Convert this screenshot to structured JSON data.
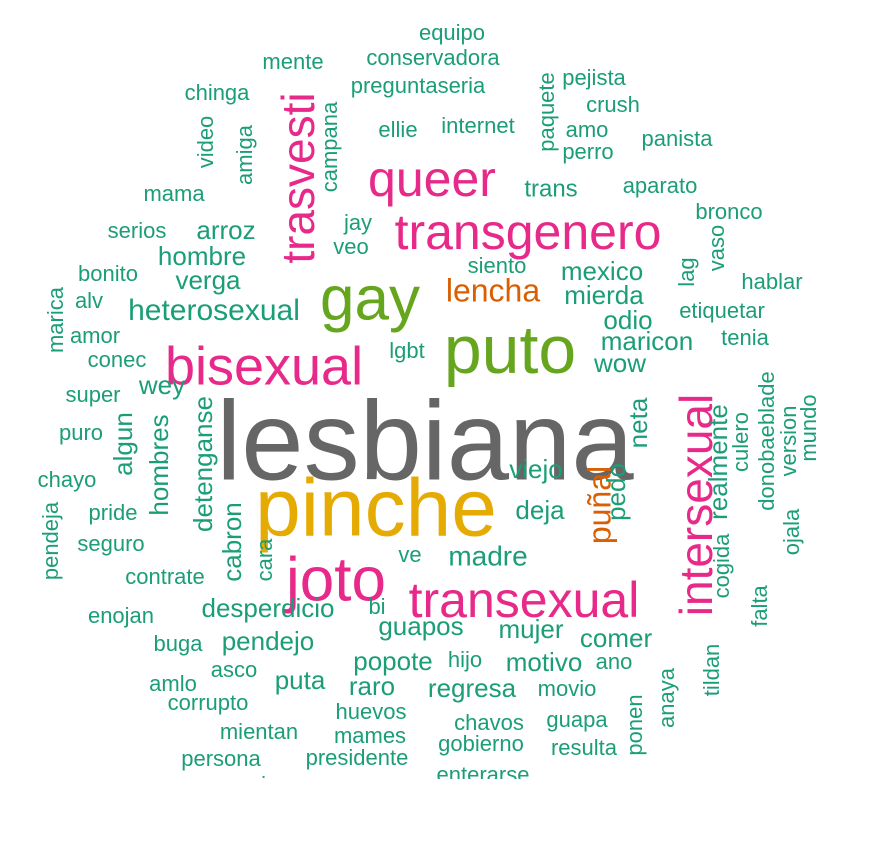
{
  "chart_data": {
    "type": "wordcloud",
    "colors": {
      "large": "#666666",
      "strong": "#e6ab02",
      "accent": "#e7298a",
      "green": "#66a61e",
      "orange": "#d95f02",
      "base": "#1b9e77"
    },
    "words": [
      {
        "text": "lesbiana",
        "color": "large"
      },
      {
        "text": "pinche",
        "color": "strong"
      },
      {
        "text": "puto",
        "color": "green"
      },
      {
        "text": "gay",
        "color": "green"
      },
      {
        "text": "bisexual",
        "color": "accent"
      },
      {
        "text": "transgenero",
        "color": "accent"
      },
      {
        "text": "queer",
        "color": "accent"
      },
      {
        "text": "trasvesti",
        "color": "accent"
      },
      {
        "text": "joto",
        "color": "accent"
      },
      {
        "text": "transexual",
        "color": "accent"
      },
      {
        "text": "intersexual",
        "color": "accent"
      },
      {
        "text": "lencha",
        "color": "orange"
      },
      {
        "text": "puñal",
        "color": "orange"
      },
      {
        "text": "equipo",
        "color": "base"
      },
      {
        "text": "mente",
        "color": "base"
      },
      {
        "text": "conservadora",
        "color": "base"
      },
      {
        "text": "preguntaseria",
        "color": "base"
      },
      {
        "text": "pejista",
        "color": "base"
      },
      {
        "text": "chinga",
        "color": "base"
      },
      {
        "text": "crush",
        "color": "base"
      },
      {
        "text": "paquete",
        "color": "base"
      },
      {
        "text": "campana",
        "color": "base"
      },
      {
        "text": "ellie",
        "color": "base"
      },
      {
        "text": "internet",
        "color": "base"
      },
      {
        "text": "amo",
        "color": "base"
      },
      {
        "text": "perro",
        "color": "base"
      },
      {
        "text": "panista",
        "color": "base"
      },
      {
        "text": "video",
        "color": "base"
      },
      {
        "text": "amiga",
        "color": "base"
      },
      {
        "text": "mama",
        "color": "base"
      },
      {
        "text": "trans",
        "color": "base"
      },
      {
        "text": "aparato",
        "color": "base"
      },
      {
        "text": "serios",
        "color": "base"
      },
      {
        "text": "arroz",
        "color": "base"
      },
      {
        "text": "jay",
        "color": "base"
      },
      {
        "text": "veo",
        "color": "base"
      },
      {
        "text": "bronco",
        "color": "base"
      },
      {
        "text": "vaso",
        "color": "base"
      },
      {
        "text": "hombre",
        "color": "base"
      },
      {
        "text": "siento",
        "color": "base"
      },
      {
        "text": "bonito",
        "color": "base"
      },
      {
        "text": "verga",
        "color": "base"
      },
      {
        "text": "mexico",
        "color": "base"
      },
      {
        "text": "lag",
        "color": "base"
      },
      {
        "text": "hablar",
        "color": "base"
      },
      {
        "text": "alv",
        "color": "base"
      },
      {
        "text": "heterosexual",
        "color": "base"
      },
      {
        "text": "mierda",
        "color": "base"
      },
      {
        "text": "marica",
        "color": "base"
      },
      {
        "text": "etiquetar",
        "color": "base"
      },
      {
        "text": "amor",
        "color": "base"
      },
      {
        "text": "odio",
        "color": "base"
      },
      {
        "text": "tenia",
        "color": "base"
      },
      {
        "text": "maricon",
        "color": "base"
      },
      {
        "text": "conec",
        "color": "base"
      },
      {
        "text": "lgbt",
        "color": "base"
      },
      {
        "text": "wow",
        "color": "base"
      },
      {
        "text": "super",
        "color": "base"
      },
      {
        "text": "wey",
        "color": "base"
      },
      {
        "text": "donobaeblade",
        "color": "base"
      },
      {
        "text": "mundo",
        "color": "base"
      },
      {
        "text": "version",
        "color": "base"
      },
      {
        "text": "culero",
        "color": "base"
      },
      {
        "text": "puro",
        "color": "base"
      },
      {
        "text": "algun",
        "color": "base"
      },
      {
        "text": "hombres",
        "color": "base"
      },
      {
        "text": "detenganse",
        "color": "base"
      },
      {
        "text": "neta",
        "color": "base"
      },
      {
        "text": "realmente",
        "color": "base"
      },
      {
        "text": "chayo",
        "color": "base"
      },
      {
        "text": "viejo",
        "color": "base"
      },
      {
        "text": "pedo",
        "color": "base"
      },
      {
        "text": "pride",
        "color": "base"
      },
      {
        "text": "pendeja",
        "color": "base"
      },
      {
        "text": "cabron",
        "color": "base"
      },
      {
        "text": "deja",
        "color": "base"
      },
      {
        "text": "seguro",
        "color": "base"
      },
      {
        "text": "cara",
        "color": "base"
      },
      {
        "text": "ojala",
        "color": "base"
      },
      {
        "text": "ve",
        "color": "base"
      },
      {
        "text": "madre",
        "color": "base"
      },
      {
        "text": "cogida",
        "color": "base"
      },
      {
        "text": "contrate",
        "color": "base"
      },
      {
        "text": "falta",
        "color": "base"
      },
      {
        "text": "enojan",
        "color": "base"
      },
      {
        "text": "desperdicio",
        "color": "base"
      },
      {
        "text": "bi",
        "color": "base"
      },
      {
        "text": "guapos",
        "color": "base"
      },
      {
        "text": "mujer",
        "color": "base"
      },
      {
        "text": "comer",
        "color": "base"
      },
      {
        "text": "buga",
        "color": "base"
      },
      {
        "text": "pendejo",
        "color": "base"
      },
      {
        "text": "ano",
        "color": "base"
      },
      {
        "text": "tildan",
        "color": "base"
      },
      {
        "text": "asco",
        "color": "base"
      },
      {
        "text": "popote",
        "color": "base"
      },
      {
        "text": "hijo",
        "color": "base"
      },
      {
        "text": "motivo",
        "color": "base"
      },
      {
        "text": "amlo",
        "color": "base"
      },
      {
        "text": "puta",
        "color": "base"
      },
      {
        "text": "raro",
        "color": "base"
      },
      {
        "text": "regresa",
        "color": "base"
      },
      {
        "text": "movio",
        "color": "base"
      },
      {
        "text": "anaya",
        "color": "base"
      },
      {
        "text": "corrupto",
        "color": "base"
      },
      {
        "text": "huevos",
        "color": "base"
      },
      {
        "text": "ponen",
        "color": "base"
      },
      {
        "text": "mientan",
        "color": "base"
      },
      {
        "text": "mames",
        "color": "base"
      },
      {
        "text": "chavos",
        "color": "base"
      },
      {
        "text": "guapa",
        "color": "base"
      },
      {
        "text": "gobierno",
        "color": "base"
      },
      {
        "text": "resulta",
        "color": "base"
      },
      {
        "text": "persona",
        "color": "base"
      },
      {
        "text": "presidente",
        "color": "base"
      },
      {
        "text": "enterarse",
        "color": "base"
      },
      {
        "text": "amigos",
        "color": "base"
      }
    ]
  }
}
